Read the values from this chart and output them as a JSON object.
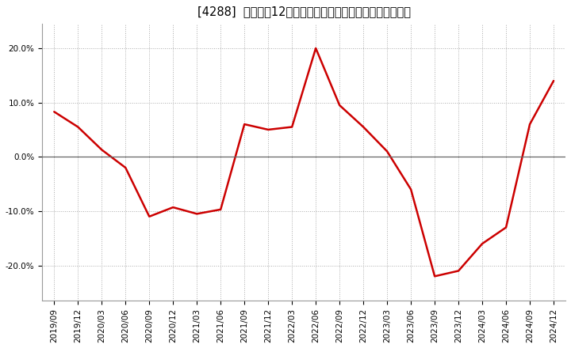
{
  "title": "[4288]  売上高の12か月移動合計の対前年同期増減率の推移",
  "line_color": "#cc0000",
  "background_color": "#ffffff",
  "plot_bg_color": "#ffffff",
  "grid_color": "#aaaaaa",
  "zero_line_color": "#666666",
  "ylim": [
    -0.265,
    0.245
  ],
  "yticks": [
    -0.2,
    -0.1,
    0.0,
    0.1,
    0.2
  ],
  "dates": [
    "2019/09",
    "2019/12",
    "2020/03",
    "2020/06",
    "2020/09",
    "2020/12",
    "2021/03",
    "2021/06",
    "2021/09",
    "2021/12",
    "2022/03",
    "2022/06",
    "2022/09",
    "2022/12",
    "2023/03",
    "2023/06",
    "2023/09",
    "2023/12",
    "2024/03",
    "2024/06",
    "2024/09",
    "2024/12"
  ],
  "values": [
    0.083,
    0.055,
    0.013,
    -0.02,
    -0.11,
    -0.093,
    -0.105,
    -0.097,
    0.06,
    0.05,
    0.055,
    0.2,
    0.095,
    0.055,
    0.01,
    -0.06,
    -0.22,
    -0.21,
    -0.16,
    -0.13,
    0.06,
    0.14
  ],
  "title_fontsize": 10.5,
  "tick_fontsize": 7.5
}
